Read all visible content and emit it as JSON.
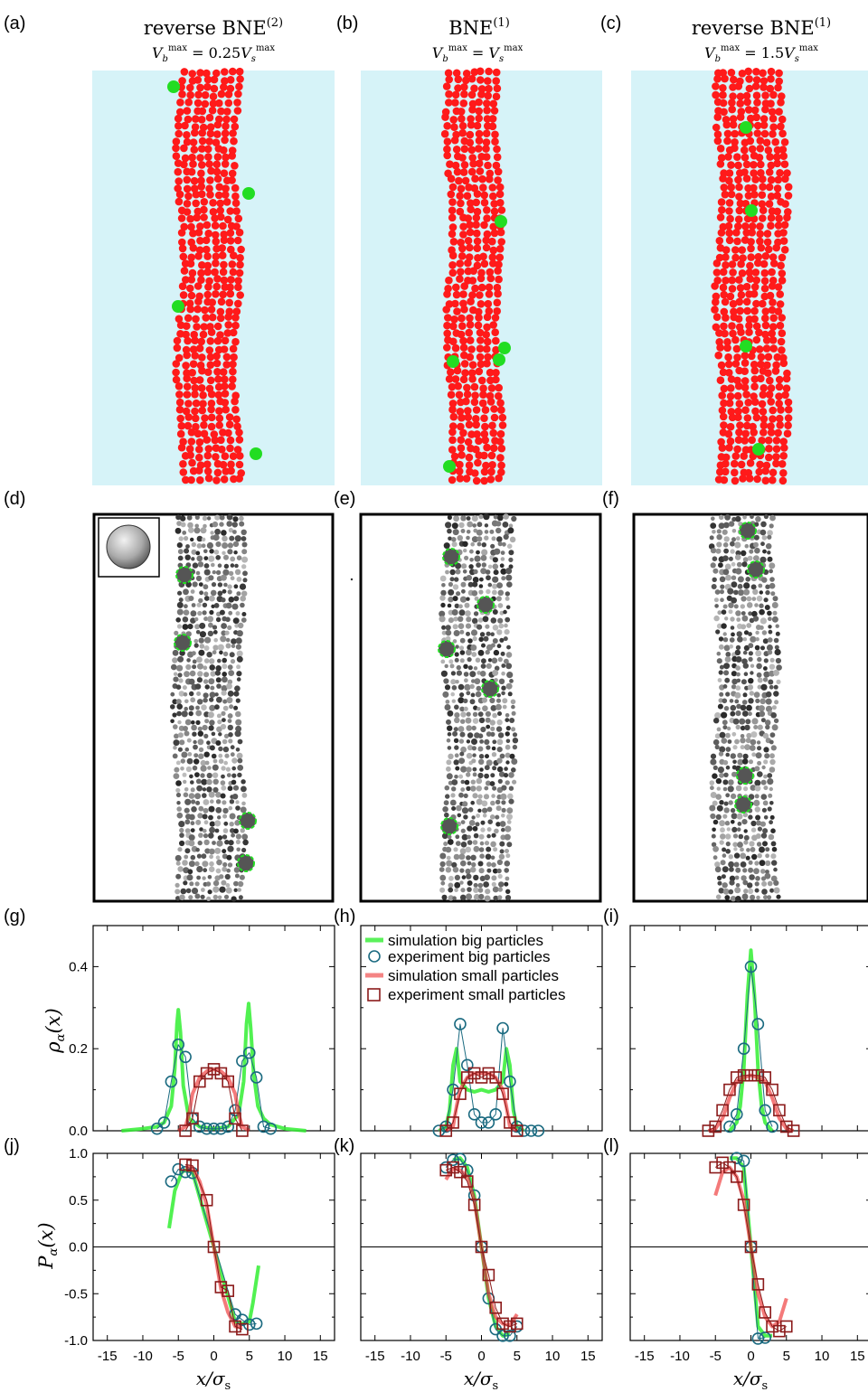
{
  "panel_letters": [
    "(a)",
    "(b)",
    "(c)",
    "(d)",
    "(e)",
    "(f)",
    "(g)",
    "(h)",
    "(i)",
    "(j)",
    "(k)",
    "(l)"
  ],
  "sim_titles": [
    {
      "title": "reverse BNE",
      "sup": "(2)",
      "eq_lhs": "V_b^max",
      "eq_rel": "=",
      "eq_rhs": "0.25V_s^max"
    },
    {
      "title": "BNE",
      "sup": "(1)",
      "eq_lhs": "V_b^max",
      "eq_rel": "=",
      "eq_rhs": "V_s^max"
    },
    {
      "title": "reverse BNE",
      "sup": "(1)",
      "eq_lhs": "V_b^max",
      "eq_rel": "=",
      "eq_rhs": "1.5V_s^max"
    }
  ],
  "colors": {
    "sim_background": "#d6f3f8",
    "small_particle": "#ff1a1a",
    "big_particle": "#22dd22",
    "sim_big_line": "#33ee33",
    "exp_big_marker": "#1a6a80",
    "sim_small_line": "#ee3333",
    "exp_small_marker": "#8b1a1a"
  },
  "legend": {
    "sim_big": "simulation big particles",
    "exp_big": "experiment big particles",
    "sim_small": "simulation small particles",
    "exp_small": "experiment small particles"
  },
  "axes": {
    "rho_label": "ρ",
    "rho_sub": "α",
    "rho_arg": "(x)",
    "p_label": "P",
    "p_sub": "α",
    "p_arg": "(x)",
    "x_label": "x/σ",
    "x_sub": "s"
  },
  "chart_data": [
    {
      "type": "line",
      "panel": "g",
      "x_range": [
        -17,
        17
      ],
      "ylim": [
        0,
        0.5
      ],
      "y_ticks": [
        "0.0",
        "0.2",
        "0.4"
      ],
      "series": [
        {
          "name": "simulation big particles",
          "x": [
            -13,
            -10,
            -8,
            -7,
            -6,
            -5.5,
            -5.2,
            -5,
            -4.7,
            -4.3,
            -3.5,
            -2,
            0,
            2,
            3.5,
            4.2,
            4.6,
            4.9,
            5.2,
            5.6,
            6.2,
            7,
            8,
            10,
            13
          ],
          "y": [
            0.0,
            0.005,
            0.01,
            0.02,
            0.06,
            0.15,
            0.26,
            0.295,
            0.24,
            0.11,
            0.03,
            0.01,
            0.005,
            0.01,
            0.04,
            0.12,
            0.26,
            0.31,
            0.25,
            0.14,
            0.06,
            0.03,
            0.015,
            0.005,
            0.0
          ]
        },
        {
          "name": "experiment big particles",
          "x": [
            -8,
            -7,
            -6,
            -5,
            -4,
            -3,
            -2,
            -1,
            0,
            1,
            2,
            3,
            4,
            5,
            6,
            7,
            8
          ],
          "y": [
            0.005,
            0.02,
            0.12,
            0.21,
            0.18,
            0.03,
            0.01,
            0.005,
            0.005,
            0.005,
            0.01,
            0.05,
            0.17,
            0.19,
            0.13,
            0.01,
            0.005
          ]
        },
        {
          "name": "simulation small particles",
          "x": [
            -5,
            -4,
            -3.5,
            -3,
            -2,
            -1,
            0,
            1,
            2,
            3,
            3.5,
            4,
            5
          ],
          "y": [
            0.0,
            0.01,
            0.04,
            0.09,
            0.13,
            0.145,
            0.15,
            0.145,
            0.13,
            0.09,
            0.04,
            0.01,
            0.0
          ]
        },
        {
          "name": "experiment small particles",
          "x": [
            -4,
            -3,
            -2,
            -1,
            0,
            1,
            2,
            3,
            4
          ],
          "y": [
            0.0,
            0.03,
            0.12,
            0.14,
            0.15,
            0.14,
            0.12,
            0.03,
            0.0
          ]
        }
      ]
    },
    {
      "type": "line",
      "panel": "h",
      "x_range": [
        -17,
        17
      ],
      "ylim": [
        0,
        0.5
      ],
      "series": [
        {
          "name": "simulation big particles",
          "x": [
            -6,
            -5,
            -4.5,
            -4,
            -3.5,
            -3,
            -2,
            -1,
            0,
            1,
            2,
            3,
            3.5,
            4,
            4.5,
            5,
            6
          ],
          "y": [
            0.0,
            0.01,
            0.05,
            0.16,
            0.2,
            0.12,
            0.1,
            0.095,
            0.1,
            0.095,
            0.1,
            0.12,
            0.2,
            0.16,
            0.05,
            0.01,
            0.0
          ]
        },
        {
          "name": "experiment big particles",
          "x": [
            -6,
            -5,
            -4,
            -3,
            -2,
            -1,
            0,
            1,
            2,
            3,
            4,
            5,
            6,
            7,
            8
          ],
          "y": [
            0.0,
            0.01,
            0.1,
            0.26,
            0.16,
            0.04,
            0.02,
            0.02,
            0.04,
            0.25,
            0.12,
            0.01,
            0.0,
            0.0,
            0.0
          ]
        },
        {
          "name": "simulation small particles",
          "x": [
            -5,
            -4,
            -3.5,
            -3,
            -2,
            -1,
            0,
            1,
            2,
            3,
            3.5,
            4,
            5
          ],
          "y": [
            0.0,
            0.01,
            0.06,
            0.1,
            0.13,
            0.14,
            0.14,
            0.14,
            0.13,
            0.1,
            0.06,
            0.01,
            0.0
          ]
        },
        {
          "name": "experiment small particles",
          "x": [
            -5,
            -4,
            -3,
            -2,
            -1,
            0,
            1,
            2,
            3,
            4,
            5
          ],
          "y": [
            0.0,
            0.02,
            0.09,
            0.13,
            0.14,
            0.13,
            0.14,
            0.13,
            0.09,
            0.02,
            0.0
          ]
        }
      ]
    },
    {
      "type": "line",
      "panel": "i",
      "x_range": [
        -17,
        17
      ],
      "ylim": [
        0,
        0.5
      ],
      "series": [
        {
          "name": "simulation big particles",
          "x": [
            -3,
            -2,
            -1.5,
            -1,
            -0.5,
            0,
            0.5,
            1,
            1.5,
            2,
            3
          ],
          "y": [
            0.0,
            0.02,
            0.06,
            0.15,
            0.33,
            0.44,
            0.33,
            0.15,
            0.06,
            0.02,
            0.0
          ]
        },
        {
          "name": "experiment big particles",
          "x": [
            -3,
            -2,
            -1,
            0,
            1,
            2,
            3
          ],
          "y": [
            0.01,
            0.04,
            0.2,
            0.4,
            0.26,
            0.05,
            0.01
          ]
        },
        {
          "name": "simulation small particles",
          "x": [
            -6,
            -5,
            -4,
            -3,
            -2,
            -1,
            0,
            1,
            2,
            3,
            4,
            5,
            6
          ],
          "y": [
            0.0,
            0.005,
            0.03,
            0.08,
            0.12,
            0.13,
            0.135,
            0.13,
            0.12,
            0.08,
            0.03,
            0.005,
            0.0
          ]
        },
        {
          "name": "experiment small particles",
          "x": [
            -6,
            -5,
            -4,
            -3,
            -2,
            -1,
            0,
            1,
            2,
            3,
            4,
            5,
            6
          ],
          "y": [
            0.0,
            0.01,
            0.05,
            0.1,
            0.13,
            0.135,
            0.135,
            0.135,
            0.13,
            0.1,
            0.05,
            0.01,
            0.0
          ]
        }
      ]
    },
    {
      "type": "line",
      "panel": "j",
      "x_range": [
        -17,
        17
      ],
      "ylim": [
        -1.0,
        1.0
      ],
      "y_ticks": [
        "1.0",
        "0.5",
        "0.0",
        "-0.5",
        "-1.0"
      ],
      "x_ticks": [
        "-15",
        "-10",
        "-5",
        "0",
        "5",
        "10",
        "15"
      ],
      "series": [
        {
          "name": "simulation big particles",
          "x": [
            -6.3,
            -5.5,
            -4.5,
            -4,
            -3,
            3,
            4,
            5,
            5.5,
            6.3
          ],
          "y": [
            0.2,
            0.6,
            0.8,
            0.82,
            0.8,
            -0.8,
            -0.82,
            -0.8,
            -0.6,
            -0.2
          ]
        },
        {
          "name": "experiment big particles",
          "x": [
            -6,
            -5,
            -4,
            -3,
            3,
            4,
            5,
            6
          ],
          "y": [
            0.7,
            0.83,
            0.8,
            0.79,
            -0.72,
            -0.78,
            -0.83,
            -0.82
          ]
        },
        {
          "name": "simulation small particles",
          "x": [
            -4,
            -3,
            -2,
            -1,
            0,
            1,
            2,
            3,
            4
          ],
          "y": [
            0.86,
            0.85,
            0.7,
            0.45,
            0.0,
            -0.45,
            -0.7,
            -0.85,
            -0.86
          ]
        },
        {
          "name": "experiment small particles",
          "x": [
            -4,
            -3,
            -1,
            0,
            1,
            2,
            3,
            4
          ],
          "y": [
            0.88,
            0.87,
            0.5,
            0.0,
            -0.43,
            -0.47,
            -0.85,
            -0.88
          ]
        }
      ]
    },
    {
      "type": "line",
      "panel": "k",
      "x_range": [
        -17,
        17
      ],
      "ylim": [
        -1.0,
        1.0
      ],
      "x_ticks": [
        "-15",
        "-10",
        "-5",
        "0",
        "5",
        "10",
        "15"
      ],
      "series": [
        {
          "name": "simulation big particles",
          "x": [
            -4,
            -3,
            -2,
            -1,
            0,
            1,
            2,
            3,
            4
          ],
          "y": [
            0.93,
            0.95,
            0.85,
            0.55,
            0.0,
            -0.55,
            -0.85,
            -0.95,
            -0.93
          ]
        },
        {
          "name": "experiment big particles",
          "x": [
            -5,
            -4,
            -3,
            -2,
            -1,
            0,
            1,
            2,
            3,
            4,
            5
          ],
          "y": [
            0.85,
            0.93,
            0.94,
            0.82,
            0.55,
            0.0,
            -0.55,
            -0.88,
            -0.95,
            -0.95,
            -0.85
          ]
        },
        {
          "name": "simulation small particles",
          "x": [
            -5,
            -4,
            -3,
            -2,
            -1,
            0,
            1,
            2,
            3,
            4,
            5
          ],
          "y": [
            0.72,
            0.84,
            0.82,
            0.75,
            0.5,
            0.0,
            -0.5,
            -0.75,
            -0.82,
            -0.84,
            -0.72
          ]
        },
        {
          "name": "experiment small particles",
          "x": [
            -5,
            -4,
            -3,
            -2,
            -1,
            0,
            1,
            2,
            3,
            4,
            5
          ],
          "y": [
            0.82,
            0.85,
            0.8,
            0.7,
            0.45,
            0.0,
            -0.3,
            -0.65,
            -0.82,
            -0.85,
            -0.82
          ]
        }
      ]
    },
    {
      "type": "line",
      "panel": "l",
      "x_range": [
        -17,
        17
      ],
      "ylim": [
        -1.0,
        1.0
      ],
      "x_ticks": [
        "-15",
        "-10",
        "-5",
        "0",
        "5",
        "10",
        "15"
      ],
      "series": [
        {
          "name": "simulation big particles",
          "x": [
            -3,
            -2,
            -1,
            0,
            1,
            2,
            3
          ],
          "y": [
            0.95,
            0.95,
            0.85,
            0.0,
            -0.85,
            -0.95,
            -0.95
          ]
        },
        {
          "name": "experiment big particles",
          "x": [
            -2,
            -1,
            0,
            1,
            2
          ],
          "y": [
            0.95,
            0.92,
            0.0,
            -0.98,
            -0.97
          ]
        },
        {
          "name": "simulation small particles",
          "x": [
            -5,
            -4,
            -3,
            -2,
            -1,
            0,
            1,
            2,
            3,
            4,
            5
          ],
          "y": [
            0.55,
            0.8,
            0.85,
            0.75,
            0.5,
            0.0,
            -0.5,
            -0.75,
            -0.85,
            -0.8,
            -0.55
          ]
        },
        {
          "name": "experiment small particles",
          "x": [
            -5,
            -4,
            -3,
            -2,
            -1,
            0,
            1,
            2,
            3,
            4,
            5
          ],
          "y": [
            0.85,
            0.9,
            0.85,
            0.75,
            0.45,
            0.0,
            -0.4,
            -0.7,
            -0.85,
            -0.9,
            -0.85
          ]
        }
      ]
    }
  ]
}
